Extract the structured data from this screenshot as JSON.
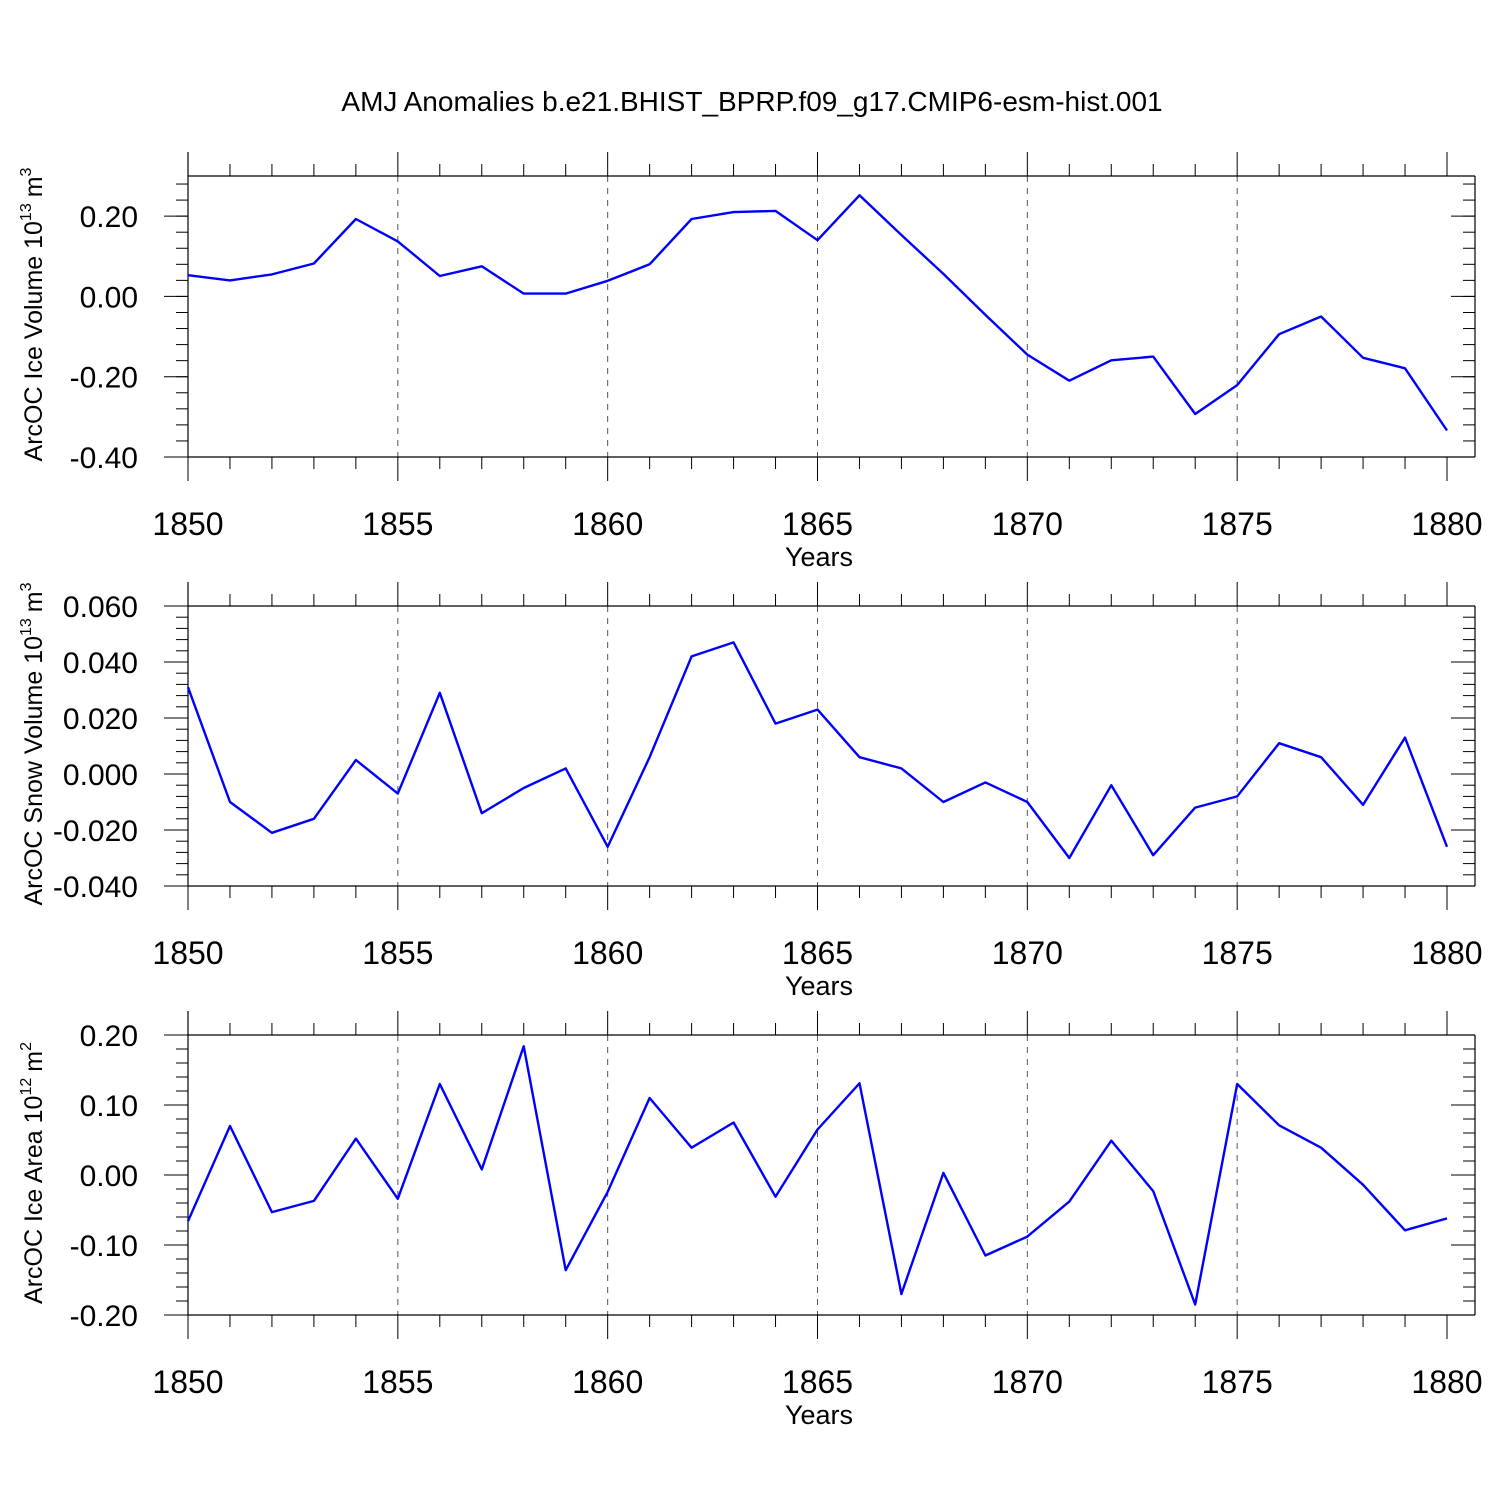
{
  "title": "AMJ Anomalies b.e21.BHIST_BPRP.f09_g17.CMIP6-esm-hist.001",
  "chart_data": [
    {
      "type": "line",
      "ylabel": "ArcOC Ice Volume 10",
      "ylabel_exp": "13",
      "ylabel_unit": "m",
      "ylabel_unit_exp": "3",
      "xlabel": "Years",
      "x": [
        1850,
        1851,
        1852,
        1853,
        1854,
        1855,
        1856,
        1857,
        1858,
        1859,
        1860,
        1861,
        1862,
        1863,
        1864,
        1865,
        1866,
        1867,
        1868,
        1869,
        1870,
        1871,
        1872,
        1873,
        1874,
        1875,
        1876,
        1877,
        1878,
        1879,
        1880
      ],
      "xlim": [
        1850,
        1880
      ],
      "ylim": [
        -0.4,
        0.3
      ],
      "yticks": [
        -0.4,
        -0.2,
        0.0,
        0.2
      ],
      "ytick_labels": [
        "-0.40",
        "-0.20",
        "0.00",
        "0.20"
      ],
      "xticks": [
        1850,
        1855,
        1860,
        1865,
        1870,
        1875,
        1880
      ],
      "xtick_labels": [
        "1850",
        "1855",
        "1860",
        "1865",
        "1870",
        "1875",
        "1880"
      ],
      "series": [
        {
          "values": [
            0.053,
            0.04,
            0.055,
            0.082,
            0.193,
            0.137,
            0.051,
            0.075,
            0.007,
            0.007,
            0.039,
            0.08,
            0.193,
            0.21,
            0.213,
            0.14,
            0.252,
            0.153,
            0.056,
            -0.046,
            -0.145,
            -0.21,
            -0.159,
            -0.15,
            -0.293,
            -0.221,
            -0.094,
            -0.05,
            -0.153,
            -0.179,
            -0.334
          ]
        }
      ],
      "color": "#0000ff",
      "grid": "dashed vertical lines at major x ticks"
    },
    {
      "type": "line",
      "ylabel": "ArcOC Snow Volume 10",
      "ylabel_exp": "13",
      "ylabel_unit": "m",
      "ylabel_unit_exp": "3",
      "xlabel": "Years",
      "x": [
        1850,
        1851,
        1852,
        1853,
        1854,
        1855,
        1856,
        1857,
        1858,
        1859,
        1860,
        1861,
        1862,
        1863,
        1864,
        1865,
        1866,
        1867,
        1868,
        1869,
        1870,
        1871,
        1872,
        1873,
        1874,
        1875,
        1876,
        1877,
        1878,
        1879,
        1880
      ],
      "xlim": [
        1850,
        1880
      ],
      "ylim": [
        -0.04,
        0.06
      ],
      "yticks": [
        -0.04,
        -0.02,
        0.0,
        0.02,
        0.04,
        0.06
      ],
      "ytick_labels": [
        "-0.040",
        "-0.020",
        "0.000",
        "0.020",
        "0.040",
        "0.060"
      ],
      "xticks": [
        1850,
        1855,
        1860,
        1865,
        1870,
        1875,
        1880
      ],
      "xtick_labels": [
        "1850",
        "1855",
        "1860",
        "1865",
        "1870",
        "1875",
        "1880"
      ],
      "series": [
        {
          "values": [
            0.031,
            -0.01,
            -0.021,
            -0.016,
            0.005,
            -0.007,
            0.029,
            -0.014,
            -0.005,
            0.002,
            -0.026,
            0.006,
            0.042,
            0.047,
            0.018,
            0.023,
            0.006,
            0.002,
            -0.01,
            -0.003,
            -0.01,
            -0.03,
            -0.004,
            -0.029,
            -0.012,
            -0.008,
            0.011,
            0.006,
            -0.011,
            0.013,
            -0.026
          ]
        }
      ],
      "color": "#0000ff",
      "grid": "dashed vertical lines at major x ticks"
    },
    {
      "type": "line",
      "ylabel": "ArcOC Ice Area 10",
      "ylabel_exp": "12",
      "ylabel_unit": "m",
      "ylabel_unit_exp": "2",
      "xlabel": "Years",
      "x": [
        1850,
        1851,
        1852,
        1853,
        1854,
        1855,
        1856,
        1857,
        1858,
        1859,
        1860,
        1861,
        1862,
        1863,
        1864,
        1865,
        1866,
        1867,
        1868,
        1869,
        1870,
        1871,
        1872,
        1873,
        1874,
        1875,
        1876,
        1877,
        1878,
        1879,
        1880
      ],
      "xlim": [
        1850,
        1880
      ],
      "ylim": [
        -0.2,
        0.2
      ],
      "yticks": [
        -0.2,
        -0.1,
        0.0,
        0.1,
        0.2
      ],
      "ytick_labels": [
        "-0.20",
        "-0.10",
        "0.00",
        "0.10",
        "0.20"
      ],
      "xticks": [
        1850,
        1855,
        1860,
        1865,
        1870,
        1875,
        1880
      ],
      "xtick_labels": [
        "1850",
        "1855",
        "1860",
        "1865",
        "1870",
        "1875",
        "1880"
      ],
      "series": [
        {
          "values": [
            -0.066,
            0.07,
            -0.053,
            -0.037,
            0.052,
            -0.034,
            0.13,
            0.008,
            0.184,
            -0.136,
            -0.024,
            0.11,
            0.039,
            0.075,
            -0.031,
            0.065,
            0.131,
            -0.17,
            0.003,
            -0.115,
            -0.088,
            -0.038,
            0.049,
            -0.023,
            -0.185,
            0.13,
            0.071,
            0.039,
            -0.014,
            -0.079,
            -0.062
          ]
        }
      ],
      "color": "#0000ff",
      "grid": "dashed vertical lines at major x ticks"
    }
  ]
}
